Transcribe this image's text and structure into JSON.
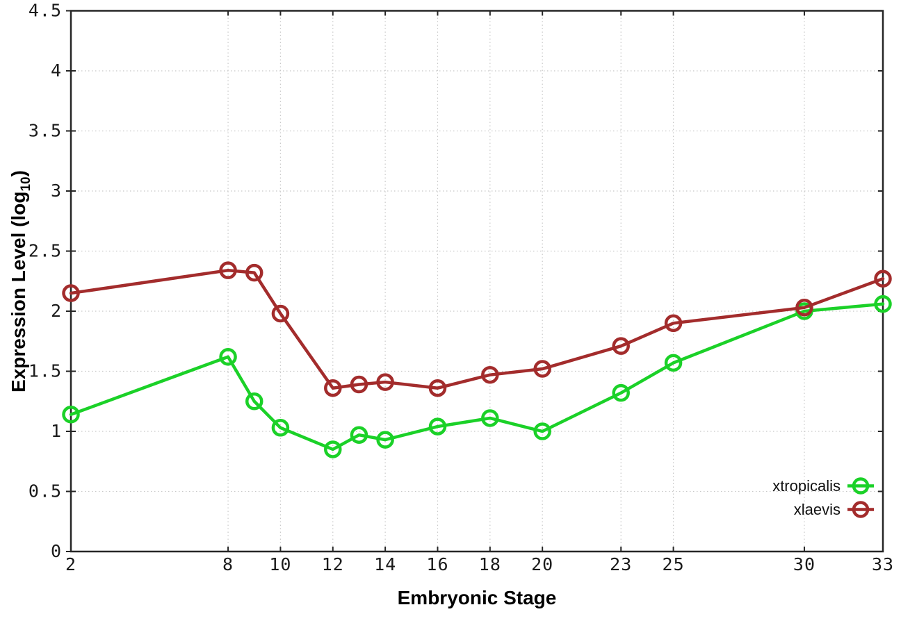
{
  "chart_data": {
    "type": "line",
    "title": "",
    "xlabel": "Embryonic Stage",
    "ylabel": "Expression Level (log10)",
    "ylabel_main": "Expression Level (log",
    "ylabel_sub": "10",
    "ylabel_close": ")",
    "xlim": [
      2,
      33
    ],
    "ylim": [
      0,
      4.5
    ],
    "x_ticks": [
      2,
      8,
      10,
      12,
      14,
      16,
      18,
      20,
      23,
      25,
      30,
      33
    ],
    "y_ticks": [
      0,
      0.5,
      1,
      1.5,
      2,
      2.5,
      3,
      3.5,
      4,
      4.5
    ],
    "grid": true,
    "grid_style": "dotted",
    "marker": "open-circle",
    "legend_position": "inside-bottom-right",
    "x": [
      2,
      8,
      9,
      10,
      12,
      13,
      14,
      16,
      18,
      20,
      23,
      25,
      30,
      33
    ],
    "series": [
      {
        "name": "xtropicalis",
        "color": "#1bd128",
        "values": [
          1.14,
          1.62,
          1.25,
          1.03,
          0.85,
          0.97,
          0.93,
          1.04,
          1.11,
          1.0,
          1.32,
          1.57,
          2.0,
          2.06
        ]
      },
      {
        "name": "xlaevis",
        "color": "#a32c2c",
        "values": [
          2.15,
          2.34,
          2.32,
          1.98,
          1.36,
          1.39,
          1.41,
          1.36,
          1.47,
          1.52,
          1.71,
          1.9,
          2.03,
          2.27
        ]
      }
    ],
    "colors": {
      "background": "#ffffff",
      "axis": "#262626",
      "grid": "#c8c8c8",
      "tick_label": "#1a1a1a"
    }
  }
}
